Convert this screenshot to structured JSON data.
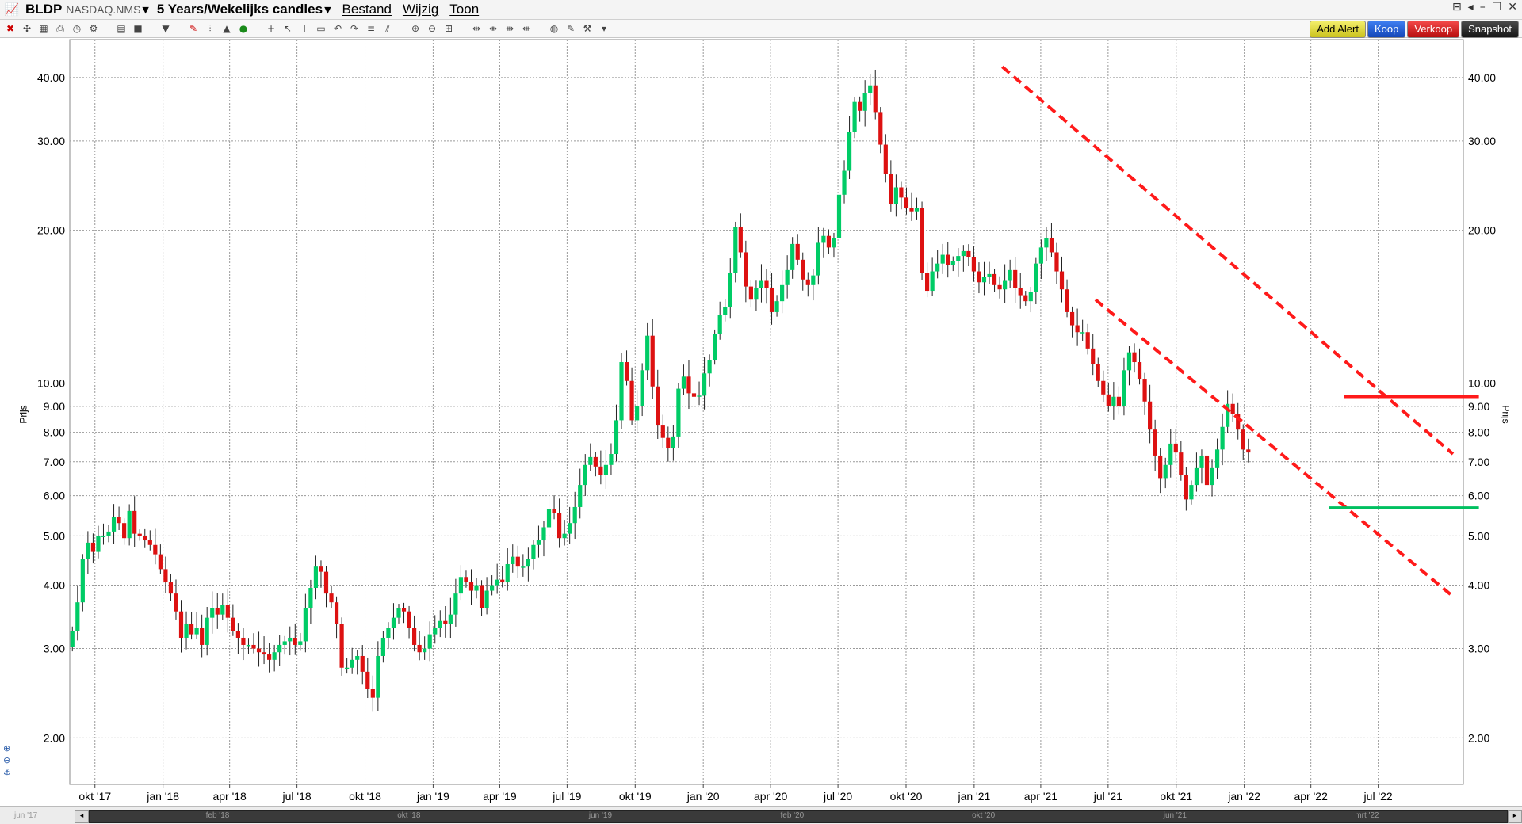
{
  "header": {
    "symbol": "BLDP",
    "exchange": "NASDAQ.NMS",
    "period": "5 Years/Wekelijks candles",
    "menus": [
      "Bestand",
      "Wijzig",
      "Toon"
    ]
  },
  "buttons": {
    "add_alert": "Add Alert",
    "koop": "Koop",
    "verkoop": "Verkoop",
    "snapshot": "Snapshot"
  },
  "colors": {
    "up": "#00cc66",
    "down": "#dd1111",
    "trend": "#ff1a1a",
    "support": "#00c060",
    "grid": "#9a9a9a"
  },
  "icons": [
    "chart-icon",
    "close-icon",
    "crosshair-icon",
    "grid-icon",
    "print-icon",
    "clock-icon",
    "settings-icon",
    "layout-icon",
    "square-icon",
    "arrow-down-icon",
    "pencil-icon",
    "bar-chart-icon",
    "mountain-icon",
    "refresh-icon",
    "cross-icon",
    "cursor-icon",
    "text-icon",
    "rectangle-icon",
    "undo-icon",
    "redo-icon",
    "fib-icon",
    "channel-icon",
    "zoom-in-icon",
    "zoom-out-icon",
    "zoom-fit-icon",
    "hbar-icon",
    "indicator-icon",
    "globe-icon",
    "wrench-icon"
  ],
  "chart_data": {
    "type": "candlestick",
    "y_scale": "log",
    "ylabel": "Prijs",
    "ylim": [
      1.62,
      47.5
    ],
    "y_ticks": [
      "40.00",
      "30.00",
      "20.00",
      "10.00",
      "9.00",
      "8.00",
      "7.00",
      "6.00",
      "5.00",
      "4.00",
      "3.00",
      "2.00"
    ],
    "y_tick_values": [
      40,
      30,
      20,
      10,
      9,
      8,
      7,
      6,
      5,
      4,
      3,
      2
    ],
    "x_ticks": [
      "okt '17",
      "jan '18",
      "apr '18",
      "jul '18",
      "okt '18",
      "jan '19",
      "apr '19",
      "jul '19",
      "okt '19",
      "jan '20",
      "apr '20",
      "jul '20",
      "okt '20",
      "jan '21",
      "apr '21",
      "jul '21",
      "okt '21",
      "jan '22",
      "apr '22",
      "jul '22"
    ],
    "navigator_labels": [
      "jun '17",
      "feb '18",
      "okt '18",
      "jun '19",
      "feb '20",
      "okt '20",
      "jun '21",
      "mrt '22"
    ],
    "x_start": "2017-08-28",
    "x_end": "2022-10-24",
    "weekly_close": [
      3.25,
      3.7,
      4.5,
      4.85,
      4.65,
      5.0,
      5.0,
      5.1,
      5.45,
      5.3,
      4.95,
      5.6,
      5.05,
      5.0,
      4.9,
      4.8,
      4.6,
      4.3,
      4.05,
      3.85,
      3.55,
      3.15,
      3.35,
      3.2,
      3.3,
      3.05,
      3.45,
      3.6,
      3.5,
      3.65,
      3.45,
      3.25,
      3.15,
      3.05,
      3.05,
      3.0,
      2.95,
      2.92,
      2.85,
      2.95,
      3.05,
      3.1,
      3.15,
      3.05,
      3.1,
      3.6,
      3.95,
      4.35,
      4.25,
      3.85,
      3.7,
      3.35,
      2.75,
      2.75,
      2.85,
      2.9,
      2.7,
      2.5,
      2.4,
      2.9,
      3.15,
      3.3,
      3.45,
      3.6,
      3.55,
      3.3,
      3.05,
      2.95,
      3.0,
      3.2,
      3.3,
      3.4,
      3.35,
      3.5,
      3.85,
      4.15,
      4.05,
      3.9,
      4.0,
      3.6,
      3.9,
      4.0,
      4.1,
      4.05,
      4.4,
      4.55,
      4.35,
      4.35,
      4.5,
      4.8,
      4.9,
      5.2,
      5.65,
      5.55,
      4.95,
      5.05,
      5.3,
      5.7,
      6.3,
      6.9,
      7.15,
      6.85,
      6.6,
      6.9,
      7.25,
      8.45,
      11.0,
      10.1,
      8.45,
      9.0,
      10.6,
      12.4,
      9.85,
      8.25,
      7.8,
      7.45,
      7.85,
      9.75,
      10.3,
      9.55,
      9.4,
      9.45,
      10.45,
      11.1,
      12.5,
      13.6,
      14.1,
      16.5,
      20.3,
      18.1,
      15.5,
      14.6,
      15.4,
      15.9,
      15.4,
      13.8,
      14.5,
      15.6,
      16.7,
      18.8,
      17.5,
      16.0,
      15.6,
      16.3,
      18.9,
      19.5,
      18.5,
      19.3,
      23.5,
      26.2,
      31.2,
      35.8,
      34.4,
      37.2,
      38.6,
      34.2,
      29.5,
      25.8,
      22.5,
      24.3,
      23.2,
      22.1,
      21.8,
      22.1,
      16.5,
      15.2,
      16.6,
      17.2,
      17.9,
      17.1,
      17.4,
      17.8,
      18.2,
      17.7,
      16.6,
      15.8,
      16.2,
      16.4,
      15.6,
      15.3,
      15.9,
      16.7,
      15.4,
      14.9,
      14.5,
      15.1,
      17.2,
      18.5,
      19.3,
      18.1,
      16.6,
      15.3,
      13.8,
      13.0,
      12.6,
      12.6,
      11.7,
      10.9,
      10.1,
      9.5,
      9.0,
      9.4,
      9.0,
      10.6,
      11.5,
      11.0,
      10.2,
      9.2,
      8.1,
      7.2,
      6.5,
      6.9,
      7.6,
      7.3,
      6.6,
      5.9,
      6.3,
      6.8,
      7.2,
      6.3,
      6.8,
      7.4,
      8.2,
      9.1,
      8.7,
      8.1,
      7.4,
      7.3
    ]
  },
  "trendlines": [
    {
      "name": "channel-upper",
      "from": [
        "2021-02-08",
        42.0
      ],
      "to": [
        "2022-10-10",
        7.25
      ]
    },
    {
      "name": "channel-lower",
      "from": [
        "2021-06-14",
        14.6
      ],
      "to": [
        "2022-10-10",
        3.8
      ]
    },
    {
      "name": "resistance",
      "from": [
        "2022-05-16",
        9.4
      ],
      "to": [
        "2022-11-14",
        9.4
      ]
    },
    {
      "name": "support",
      "from": [
        "2022-04-25",
        5.68
      ],
      "to": [
        "2022-11-14",
        5.68
      ]
    }
  ]
}
